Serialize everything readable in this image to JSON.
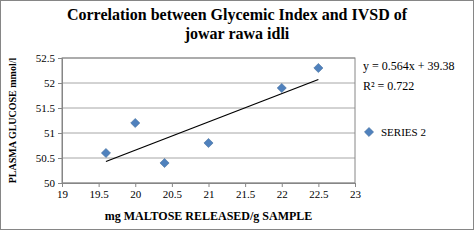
{
  "chart_data": {
    "type": "scatter",
    "title": "Correlation between Glycemic Index and IVSD of jowar rawa idli",
    "x_label": "mg MALTOSE RELEASED/g SAMPLE",
    "y_label": "PLASMA GLUCOSE mmol/l",
    "series": [
      {
        "name": "SERIES 2",
        "type": "scatter",
        "marker": "diamond",
        "color": "#4f81bd",
        "x": [
          19.6,
          20,
          20.4,
          21,
          22,
          22.5
        ],
        "values": [
          50.6,
          51.2,
          50.4,
          50.8,
          51.9,
          52.3
        ]
      },
      {
        "type": "line",
        "color": "#000000",
        "line_style": "solid",
        "x": [
          19.6,
          22.5
        ],
        "values": [
          50.43,
          52.07
        ]
      }
    ],
    "annotations": [
      "y = 0.564x + 39.38",
      "R² = 0.722"
    ],
    "xlim": [
      19,
      23
    ],
    "xticks": [
      19,
      19.5,
      20,
      20.5,
      21,
      21.5,
      22,
      22.5,
      23
    ],
    "ylim": [
      50,
      52.5
    ],
    "yticks": [
      50,
      50.5,
      51,
      51.5,
      52,
      52.5
    ],
    "grid": true,
    "legend": "right"
  }
}
